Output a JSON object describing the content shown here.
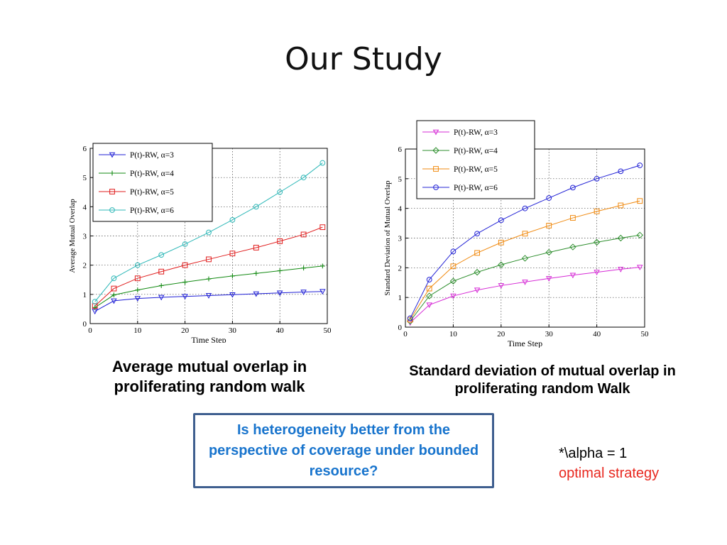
{
  "slide": {
    "title": "Our Study"
  },
  "captions": {
    "left": "Average mutual overlap in proliferating random  walk",
    "right": "Standard deviation of mutual overlap in proliferating random Walk"
  },
  "question_box": {
    "text": "Is heterogeneity better from the perspective of coverage under bounded resource?"
  },
  "note": {
    "line1": "*\\alpha = 1",
    "line2": "optimal strategy"
  },
  "chart_data": [
    {
      "type": "line",
      "title": "",
      "xlabel": "Time Step",
      "ylabel": "Average Mutual Overlap",
      "xlim": [
        0,
        50
      ],
      "ylim": [
        0,
        6
      ],
      "xticks": [
        0,
        10,
        20,
        30,
        40,
        50
      ],
      "yticks": [
        0,
        1,
        2,
        3,
        4,
        5,
        6
      ],
      "grid": true,
      "legend_position": "top-left",
      "series": [
        {
          "name": "P(t)-RW, α=3",
          "color": "#1f1fd6",
          "marker": "triangle-down",
          "x": [
            1,
            5,
            10,
            15,
            20,
            25,
            30,
            35,
            40,
            45,
            49
          ],
          "y": [
            0.42,
            0.78,
            0.86,
            0.9,
            0.93,
            0.96,
            0.99,
            1.02,
            1.05,
            1.08,
            1.1
          ]
        },
        {
          "name": "P(t)-RW, α=4",
          "color": "#138a13",
          "marker": "plus",
          "x": [
            1,
            5,
            10,
            15,
            20,
            25,
            30,
            35,
            40,
            45,
            49
          ],
          "y": [
            0.55,
            0.98,
            1.15,
            1.3,
            1.42,
            1.53,
            1.63,
            1.72,
            1.81,
            1.9,
            1.97
          ]
        },
        {
          "name": "P(t)-RW, α=5",
          "color": "#e01e1e",
          "marker": "square",
          "x": [
            1,
            5,
            10,
            15,
            20,
            25,
            30,
            35,
            40,
            45,
            49
          ],
          "y": [
            0.6,
            1.2,
            1.55,
            1.78,
            2.0,
            2.2,
            2.4,
            2.6,
            2.82,
            3.05,
            3.3
          ]
        },
        {
          "name": "P(t)-RW, α=6",
          "color": "#2fb8b8",
          "marker": "circle",
          "x": [
            1,
            5,
            10,
            15,
            20,
            25,
            30,
            35,
            40,
            45,
            49
          ],
          "y": [
            0.75,
            1.55,
            2.0,
            2.35,
            2.72,
            3.12,
            3.55,
            4.0,
            4.5,
            5.0,
            5.5
          ]
        }
      ]
    },
    {
      "type": "line",
      "title": "",
      "xlabel": "Time Step",
      "ylabel": "Standard Deviation of Mutual Overlap",
      "xlim": [
        0,
        50
      ],
      "ylim": [
        0,
        6
      ],
      "xticks": [
        0,
        10,
        20,
        30,
        40,
        50
      ],
      "yticks": [
        0,
        1,
        2,
        3,
        4,
        5,
        6
      ],
      "grid": true,
      "legend_position": "top-left",
      "series": [
        {
          "name": "P(t)-RW, α=3",
          "color": "#d62bd6",
          "marker": "triangle-down",
          "x": [
            1,
            5,
            10,
            15,
            20,
            25,
            30,
            35,
            40,
            45,
            49
          ],
          "y": [
            0.15,
            0.75,
            1.05,
            1.25,
            1.4,
            1.52,
            1.64,
            1.75,
            1.85,
            1.95,
            2.02
          ]
        },
        {
          "name": "P(t)-RW, α=4",
          "color": "#2f8f2f",
          "marker": "diamond",
          "x": [
            1,
            5,
            10,
            15,
            20,
            25,
            30,
            35,
            40,
            45,
            49
          ],
          "y": [
            0.2,
            1.05,
            1.55,
            1.85,
            2.1,
            2.32,
            2.52,
            2.7,
            2.86,
            3.0,
            3.1
          ]
        },
        {
          "name": "P(t)-RW, α=5",
          "color": "#f08a10",
          "marker": "square",
          "x": [
            1,
            5,
            10,
            15,
            20,
            25,
            30,
            35,
            40,
            45,
            49
          ],
          "y": [
            0.25,
            1.3,
            2.05,
            2.5,
            2.85,
            3.15,
            3.42,
            3.68,
            3.9,
            4.1,
            4.25
          ]
        },
        {
          "name": "P(t)-RW, α=6",
          "color": "#2424d6",
          "marker": "circle",
          "x": [
            1,
            5,
            10,
            15,
            20,
            25,
            30,
            35,
            40,
            45,
            49
          ],
          "y": [
            0.3,
            1.6,
            2.55,
            3.15,
            3.6,
            4.0,
            4.35,
            4.7,
            5.0,
            5.25,
            5.45
          ]
        }
      ]
    }
  ]
}
